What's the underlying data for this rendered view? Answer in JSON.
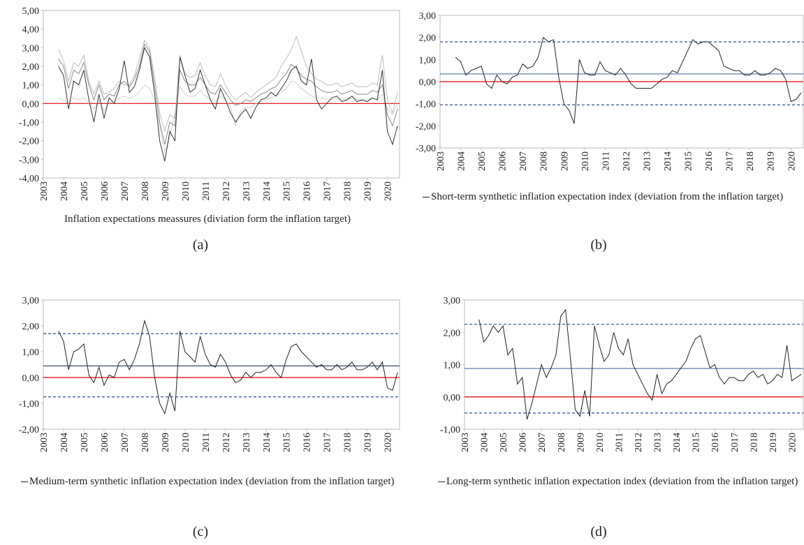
{
  "chart_data": [
    {
      "type": "line",
      "caption": "(a)",
      "xlabel": "Inflation expectations meassures  (diviation form the inflation target)",
      "x": [
        2003.75,
        2004,
        2004.25,
        2004.5,
        2004.75,
        2005,
        2005.25,
        2005.5,
        2005.75,
        2006,
        2006.25,
        2006.5,
        2006.75,
        2007,
        2007.25,
        2007.5,
        2007.75,
        2008,
        2008.25,
        2008.5,
        2008.75,
        2009,
        2009.25,
        2009.5,
        2009.75,
        2010,
        2010.25,
        2010.5,
        2010.75,
        2011,
        2011.25,
        2011.5,
        2011.75,
        2012,
        2012.25,
        2012.5,
        2012.75,
        2013,
        2013.25,
        2013.5,
        2013.75,
        2014,
        2014.25,
        2014.5,
        2014.75,
        2015,
        2015.25,
        2015.5,
        2015.75,
        2016,
        2016.25,
        2016.5,
        2016.75,
        2017,
        2017.25,
        2017.5,
        2017.75,
        2018,
        2018.25,
        2018.5,
        2018.75,
        2019,
        2019.25,
        2019.5,
        2019.75,
        2020,
        2020.25,
        2020.5
      ],
      "xlim": [
        2003,
        2020.6
      ],
      "xticks": [
        2003,
        2004,
        2005,
        2006,
        2007,
        2008,
        2009,
        2010,
        2011,
        2012,
        2013,
        2014,
        2015,
        2016,
        2017,
        2018,
        2019,
        2020
      ],
      "ylim": [
        -4,
        5
      ],
      "yticks": [
        {
          "value": 5,
          "label": "5,00"
        },
        {
          "value": 4,
          "label": "4,00"
        },
        {
          "value": 3,
          "label": "3,00"
        },
        {
          "value": 2,
          "label": "2,00"
        },
        {
          "value": 1,
          "label": "1,00"
        },
        {
          "value": 0,
          "label": "0,00"
        },
        {
          "value": -1,
          "label": "-1,00"
        },
        {
          "value": -2,
          "label": "-2,00"
        },
        {
          "value": -3,
          "label": "-3,00"
        },
        {
          "value": -4,
          "label": "-4,00"
        }
      ],
      "reference_lines": [
        {
          "value": 0,
          "color": "#e00000",
          "style": "solid"
        }
      ],
      "series": [
        {
          "color": "#d0d0d0",
          "values": [
            0.3,
            0.2,
            0.0,
            0.3,
            0.2,
            0.3,
            0.0,
            -0.3,
            0.2,
            -0.4,
            0.1,
            0.0,
            0.3,
            0.4,
            0.3,
            0.4,
            0.6,
            1.0,
            0.8,
            0.2,
            -1.2,
            -2.6,
            -1.8,
            -0.5,
            0.9,
            0.5,
            0.4,
            0.4,
            0.7,
            0.4,
            0.2,
            0.1,
            0.4,
            0.2,
            -0.2,
            -1.2,
            -0.4,
            -0.2,
            -0.2,
            0.0,
            0.1,
            0.2,
            0.3,
            0.4,
            0.6,
            0.8,
            1.2,
            1.1,
            0.8,
            0.6,
            0.4,
            0.3,
            0.3,
            0.2,
            0.2,
            0.3,
            0.2,
            0.2,
            0.3,
            0.2,
            0.2,
            0.2,
            0.3,
            0.2,
            0.5,
            -0.3,
            -0.6,
            0.0
          ]
        },
        {
          "color": "#bdbdbd",
          "values": [
            2.9,
            2.3,
            1.2,
            2.2,
            2.0,
            2.6,
            1.2,
            0.5,
            1.2,
            0.5,
            0.6,
            0.8,
            1.2,
            1.0,
            1.0,
            1.5,
            2.4,
            3.4,
            3.0,
            1.4,
            -0.5,
            -1.5,
            -0.6,
            -0.8,
            2.6,
            1.6,
            1.4,
            1.5,
            2.2,
            1.5,
            1.0,
            0.9,
            1.6,
            1.0,
            0.5,
            0.2,
            0.4,
            0.6,
            0.3,
            0.6,
            0.8,
            1.0,
            1.2,
            1.4,
            2.0,
            2.4,
            2.9,
            3.6,
            2.8,
            2.0,
            1.6,
            1.3,
            1.2,
            1.0,
            1.0,
            1.1,
            0.9,
            1.0,
            1.1,
            0.9,
            0.9,
            0.9,
            1.1,
            1.0,
            2.6,
            0.2,
            -0.5,
            0.6
          ]
        },
        {
          "color": "#8a8a8a",
          "values": [
            2.4,
            2.0,
            0.8,
            1.8,
            1.6,
            2.2,
            1.0,
            0.2,
            1.0,
            0.2,
            0.5,
            0.4,
            1.0,
            1.2,
            0.9,
            1.3,
            2.0,
            3.2,
            2.8,
            1.0,
            -1.0,
            -2.2,
            -1.0,
            -1.2,
            1.8,
            1.2,
            1.0,
            1.0,
            1.4,
            1.0,
            0.6,
            0.5,
            1.0,
            0.6,
            0.2,
            -0.1,
            0.0,
            0.2,
            0.1,
            0.3,
            0.5,
            0.6,
            0.8,
            0.9,
            1.3,
            1.6,
            2.1,
            1.9,
            1.5,
            1.3,
            1.2,
            0.9,
            0.7,
            0.6,
            0.6,
            0.7,
            0.5,
            0.6,
            0.7,
            0.5,
            0.5,
            0.5,
            0.7,
            0.6,
            1.0,
            -0.6,
            -1.2,
            -0.3
          ]
        },
        {
          "color": "#333333",
          "values": [
            2.0,
            1.5,
            -0.3,
            1.2,
            1.0,
            1.8,
            0.2,
            -1.0,
            0.5,
            -0.8,
            0.3,
            0.0,
            0.8,
            2.3,
            0.6,
            0.9,
            1.8,
            3.0,
            2.5,
            0.5,
            -2.0,
            -3.1,
            -1.5,
            -2.0,
            2.5,
            1.5,
            0.6,
            0.8,
            1.8,
            1.0,
            0.2,
            -0.3,
            0.8,
            0.2,
            -0.5,
            -1.0,
            -0.6,
            -0.3,
            -0.8,
            -0.2,
            0.2,
            0.3,
            0.6,
            0.4,
            0.8,
            1.2,
            1.8,
            2.0,
            1.2,
            1.0,
            2.4,
            0.2,
            -0.3,
            0.0,
            0.3,
            0.4,
            0.1,
            0.2,
            0.4,
            0.1,
            0.2,
            0.1,
            0.3,
            0.2,
            1.8,
            -1.5,
            -2.2,
            -1.2
          ]
        }
      ]
    },
    {
      "type": "line",
      "caption": "(b)",
      "x": [
        2003.75,
        2004,
        2004.25,
        2004.5,
        2004.75,
        2005,
        2005.25,
        2005.5,
        2005.75,
        2006,
        2006.25,
        2006.5,
        2006.75,
        2007,
        2007.25,
        2007.5,
        2007.75,
        2008,
        2008.25,
        2008.5,
        2008.75,
        2009,
        2009.25,
        2009.5,
        2009.75,
        2010,
        2010.25,
        2010.5,
        2010.75,
        2011,
        2011.25,
        2011.5,
        2011.75,
        2012,
        2012.25,
        2012.5,
        2012.75,
        2013,
        2013.25,
        2013.5,
        2013.75,
        2014,
        2014.25,
        2014.5,
        2014.75,
        2015,
        2015.25,
        2015.5,
        2015.75,
        2016,
        2016.25,
        2016.5,
        2016.75,
        2017,
        2017.25,
        2017.5,
        2017.75,
        2018,
        2018.25,
        2018.5,
        2018.75,
        2019,
        2019.25,
        2019.5,
        2019.75,
        2020,
        2020.25,
        2020.5
      ],
      "xlim": [
        2003,
        2020.6
      ],
      "xticks": [
        2003,
        2004,
        2005,
        2006,
        2007,
        2008,
        2009,
        2010,
        2011,
        2012,
        2013,
        2014,
        2015,
        2016,
        2017,
        2018,
        2019,
        2020
      ],
      "ylim": [
        -3,
        3
      ],
      "yticks": [
        {
          "value": 3,
          "label": "3,00"
        },
        {
          "value": 2,
          "label": "2,00"
        },
        {
          "value": 1,
          "label": "1,00"
        },
        {
          "value": 0,
          "label": "0,00"
        },
        {
          "value": -1,
          "label": "-1,00"
        },
        {
          "value": -2,
          "label": "-2,00"
        },
        {
          "value": -3,
          "label": "-3,00"
        }
      ],
      "reference_lines": [
        {
          "value": 0,
          "color": "#e00000",
          "style": "solid"
        },
        {
          "value": 0.35,
          "color": "#4a6fa5",
          "style": "solid"
        },
        {
          "value": 1.8,
          "color": "#2f4f8f",
          "style": "dashed"
        },
        {
          "value": -1.05,
          "color": "#2f4f8f",
          "style": "dashed"
        }
      ],
      "series": [
        {
          "name": "Short-term synthetic inflation expectation index (deviation from the inflation target)",
          "color": "#222222",
          "values": [
            1.1,
            0.9,
            0.3,
            0.5,
            0.6,
            0.7,
            -0.1,
            -0.3,
            0.3,
            0.0,
            -0.1,
            0.2,
            0.3,
            0.8,
            0.6,
            0.7,
            1.1,
            2.0,
            1.8,
            1.9,
            0.2,
            -1.0,
            -1.3,
            -1.9,
            1.0,
            0.4,
            0.3,
            0.3,
            0.9,
            0.5,
            0.4,
            0.3,
            0.6,
            0.3,
            -0.1,
            -0.3,
            -0.3,
            -0.3,
            -0.3,
            -0.1,
            0.1,
            0.2,
            0.5,
            0.4,
            0.9,
            1.4,
            1.9,
            1.7,
            1.8,
            1.8,
            1.6,
            1.4,
            0.7,
            0.6,
            0.5,
            0.5,
            0.3,
            0.3,
            0.5,
            0.3,
            0.3,
            0.4,
            0.6,
            0.5,
            0.1,
            -0.9,
            -0.8,
            -0.5
          ]
        }
      ]
    },
    {
      "type": "line",
      "caption": "(c)",
      "x": [
        2003.75,
        2004,
        2004.25,
        2004.5,
        2004.75,
        2005,
        2005.25,
        2005.5,
        2005.75,
        2006,
        2006.25,
        2006.5,
        2006.75,
        2007,
        2007.25,
        2007.5,
        2007.75,
        2008,
        2008.25,
        2008.5,
        2008.75,
        2009,
        2009.25,
        2009.5,
        2009.75,
        2010,
        2010.25,
        2010.5,
        2010.75,
        2011,
        2011.25,
        2011.5,
        2011.75,
        2012,
        2012.25,
        2012.5,
        2012.75,
        2013,
        2013.25,
        2013.5,
        2013.75,
        2014,
        2014.25,
        2014.5,
        2014.75,
        2015,
        2015.25,
        2015.5,
        2015.75,
        2016,
        2016.25,
        2016.5,
        2016.75,
        2017,
        2017.25,
        2017.5,
        2017.75,
        2018,
        2018.25,
        2018.5,
        2018.75,
        2019,
        2019.25,
        2019.5,
        2019.75,
        2020,
        2020.25,
        2020.5
      ],
      "xlim": [
        2003,
        2020.6
      ],
      "xticks": [
        2003,
        2004,
        2005,
        2006,
        2007,
        2008,
        2009,
        2010,
        2011,
        2012,
        2013,
        2014,
        2015,
        2016,
        2017,
        2018,
        2019,
        2020
      ],
      "ylim": [
        -2,
        3
      ],
      "yticks": [
        {
          "value": 3,
          "label": "3,00"
        },
        {
          "value": 2,
          "label": "2,00"
        },
        {
          "value": 1,
          "label": "1,00"
        },
        {
          "value": 0,
          "label": "0,00"
        },
        {
          "value": -1,
          "label": "-1,00"
        },
        {
          "value": -2,
          "label": "-2,00"
        }
      ],
      "reference_lines": [
        {
          "value": 0,
          "color": "#e00000",
          "style": "solid"
        },
        {
          "value": 0.45,
          "color": "#3b4f66",
          "style": "solid"
        },
        {
          "value": 1.7,
          "color": "#2f4f8f",
          "style": "dashed"
        },
        {
          "value": -0.75,
          "color": "#2f4f8f",
          "style": "dashed"
        }
      ],
      "series": [
        {
          "name": "Medium-term synthetic inflation expectation index (deviation from the inflation target)",
          "color": "#222222",
          "values": [
            1.8,
            1.4,
            0.3,
            1.0,
            1.1,
            1.3,
            0.1,
            -0.2,
            0.4,
            -0.3,
            0.1,
            0.0,
            0.6,
            0.7,
            0.3,
            0.7,
            1.3,
            2.2,
            1.6,
            0.0,
            -1.0,
            -1.4,
            -0.6,
            -1.3,
            1.8,
            1.0,
            0.8,
            0.6,
            1.6,
            0.9,
            0.5,
            0.4,
            0.9,
            0.6,
            0.1,
            -0.2,
            -0.1,
            0.2,
            0.0,
            0.2,
            0.2,
            0.3,
            0.5,
            0.2,
            0.0,
            0.7,
            1.2,
            1.3,
            1.0,
            0.8,
            0.6,
            0.4,
            0.5,
            0.3,
            0.3,
            0.5,
            0.3,
            0.4,
            0.6,
            0.3,
            0.3,
            0.4,
            0.6,
            0.3,
            0.6,
            -0.4,
            -0.5,
            0.2
          ]
        }
      ]
    },
    {
      "type": "line",
      "caption": "(d)",
      "x": [
        2003.75,
        2004,
        2004.25,
        2004.5,
        2004.75,
        2005,
        2005.25,
        2005.5,
        2005.75,
        2006,
        2006.25,
        2006.5,
        2006.75,
        2007,
        2007.25,
        2007.5,
        2007.75,
        2008,
        2008.25,
        2008.5,
        2008.75,
        2009,
        2009.25,
        2009.5,
        2009.75,
        2010,
        2010.25,
        2010.5,
        2010.75,
        2011,
        2011.25,
        2011.5,
        2011.75,
        2012,
        2012.25,
        2012.5,
        2012.75,
        2013,
        2013.25,
        2013.5,
        2013.75,
        2014,
        2014.25,
        2014.5,
        2014.75,
        2015,
        2015.25,
        2015.5,
        2015.75,
        2016,
        2016.25,
        2016.5,
        2016.75,
        2017,
        2017.25,
        2017.5,
        2017.75,
        2018,
        2018.25,
        2018.5,
        2018.75,
        2019,
        2019.25,
        2019.5,
        2019.75,
        2020,
        2020.25,
        2020.5
      ],
      "xlim": [
        2003,
        2020.6
      ],
      "xticks": [
        2003,
        2004,
        2005,
        2006,
        2007,
        2008,
        2009,
        2010,
        2011,
        2012,
        2013,
        2014,
        2015,
        2016,
        2017,
        2018,
        2019,
        2020
      ],
      "ylim": [
        -1,
        3
      ],
      "yticks": [
        {
          "value": 3,
          "label": "3,00"
        },
        {
          "value": 2,
          "label": "2,00"
        },
        {
          "value": 1,
          "label": "1,00"
        },
        {
          "value": 0,
          "label": "0,00"
        },
        {
          "value": -1,
          "label": "-1,00"
        }
      ],
      "reference_lines": [
        {
          "value": 0,
          "color": "#e00000",
          "style": "solid"
        },
        {
          "value": 0.88,
          "color": "#4a6fa5",
          "style": "solid"
        },
        {
          "value": 2.25,
          "color": "#2f4f8f",
          "style": "dashed"
        },
        {
          "value": -0.5,
          "color": "#2f4f8f",
          "style": "dashed"
        }
      ],
      "series": [
        {
          "name": "Long-term synthetic inflation expectation index (deviation from the inflation target)",
          "color": "#222222",
          "values": [
            2.4,
            1.7,
            1.9,
            2.2,
            2.0,
            2.2,
            1.3,
            1.5,
            0.4,
            0.6,
            -0.7,
            -0.2,
            0.4,
            1.0,
            0.6,
            0.9,
            1.3,
            2.5,
            2.7,
            1.2,
            -0.4,
            -0.6,
            0.2,
            -0.6,
            2.2,
            1.6,
            1.1,
            1.3,
            2.0,
            1.5,
            1.3,
            1.8,
            1.0,
            0.7,
            0.4,
            0.1,
            -0.1,
            0.7,
            0.1,
            0.4,
            0.5,
            0.7,
            0.9,
            1.1,
            1.5,
            1.8,
            1.9,
            1.4,
            0.9,
            1.0,
            0.6,
            0.4,
            0.6,
            0.6,
            0.5,
            0.5,
            0.7,
            0.8,
            0.6,
            0.7,
            0.4,
            0.5,
            0.7,
            0.6,
            1.6,
            0.5,
            0.6,
            0.7
          ]
        }
      ]
    }
  ]
}
